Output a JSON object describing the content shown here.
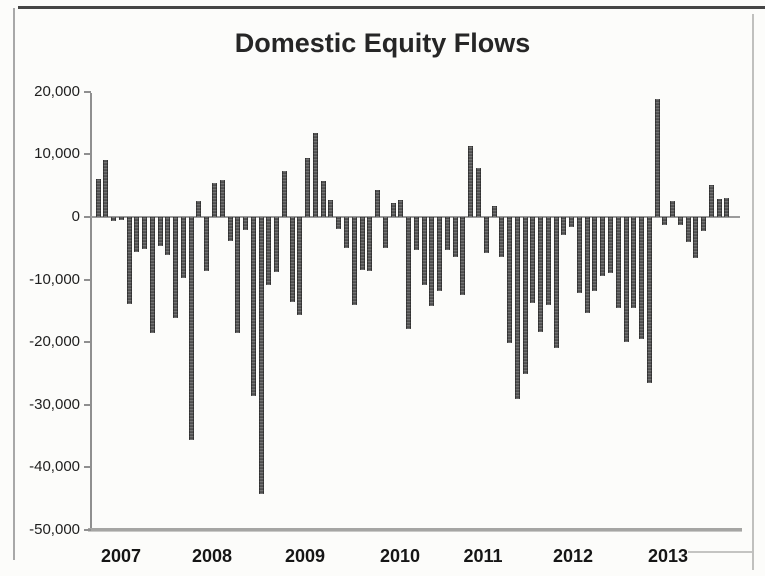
{
  "title": "Domestic Equity Flows",
  "colors": {
    "bar_fill": "#585858",
    "bar_edge": "#2f2f2f",
    "axis_line": "#8f8f8f",
    "zero_line": "#9b9b9b",
    "bottom_axis": "#a5a5a3",
    "text": "#1f1f1f",
    "background": "#fcfcfa"
  },
  "chart_data": {
    "type": "bar",
    "title": "Domestic Equity Flows",
    "xlabel": "",
    "ylabel": "",
    "ylim": [
      -50000,
      20000
    ],
    "grid": false,
    "legend": "none",
    "y_ticks": [
      20000,
      10000,
      0,
      -10000,
      -20000,
      -30000,
      -40000,
      -50000
    ],
    "y_tick_labels": [
      "20,000",
      "10,000",
      "0",
      "-10,000",
      "-20,000",
      "-30,000",
      "-40,000",
      "-50,000"
    ],
    "x_tick_labels": [
      "2007",
      "2008",
      "2009",
      "2010",
      "2011",
      "2012",
      "2013"
    ],
    "years": [
      {
        "label": "2007",
        "values": [
          6000,
          9100,
          -700,
          -500,
          -13900,
          -5600,
          -5100,
          -18500,
          -4700,
          -6000,
          -16100,
          -9700
        ]
      },
      {
        "label": "2008",
        "values": [
          -35700,
          2600,
          -8700,
          5400,
          5900,
          -3900,
          -18500,
          -2000,
          -28600,
          -44200,
          -10900,
          -8800
        ]
      },
      {
        "label": "2009",
        "values": [
          7400,
          -13500,
          -15700,
          9500,
          13400,
          5700,
          2700,
          -1900,
          -5000,
          -14100,
          -8500,
          -8700
        ]
      },
      {
        "label": "2010",
        "values": [
          4300,
          -4900,
          2300,
          2700,
          -17900,
          -5300,
          -10800,
          -14200,
          -11900,
          -5300,
          -6400,
          -12400
        ]
      },
      {
        "label": "2011",
        "values": [
          11300,
          7800,
          -5700,
          1700,
          -6400,
          -20100,
          -29100,
          -25000,
          -13700,
          -18400,
          -14000,
          -20900
        ]
      },
      {
        "label": "2012",
        "values": [
          -2800,
          -1600,
          -12200,
          -15300,
          -11900,
          -9400,
          -8900,
          -14600,
          -19900,
          -14500,
          -19500,
          -26500
        ]
      },
      {
        "label": "2013",
        "values": [
          18900,
          -1300,
          2500,
          -1200,
          -4000,
          -6500,
          -2200,
          5100,
          2900,
          3000
        ]
      }
    ]
  }
}
